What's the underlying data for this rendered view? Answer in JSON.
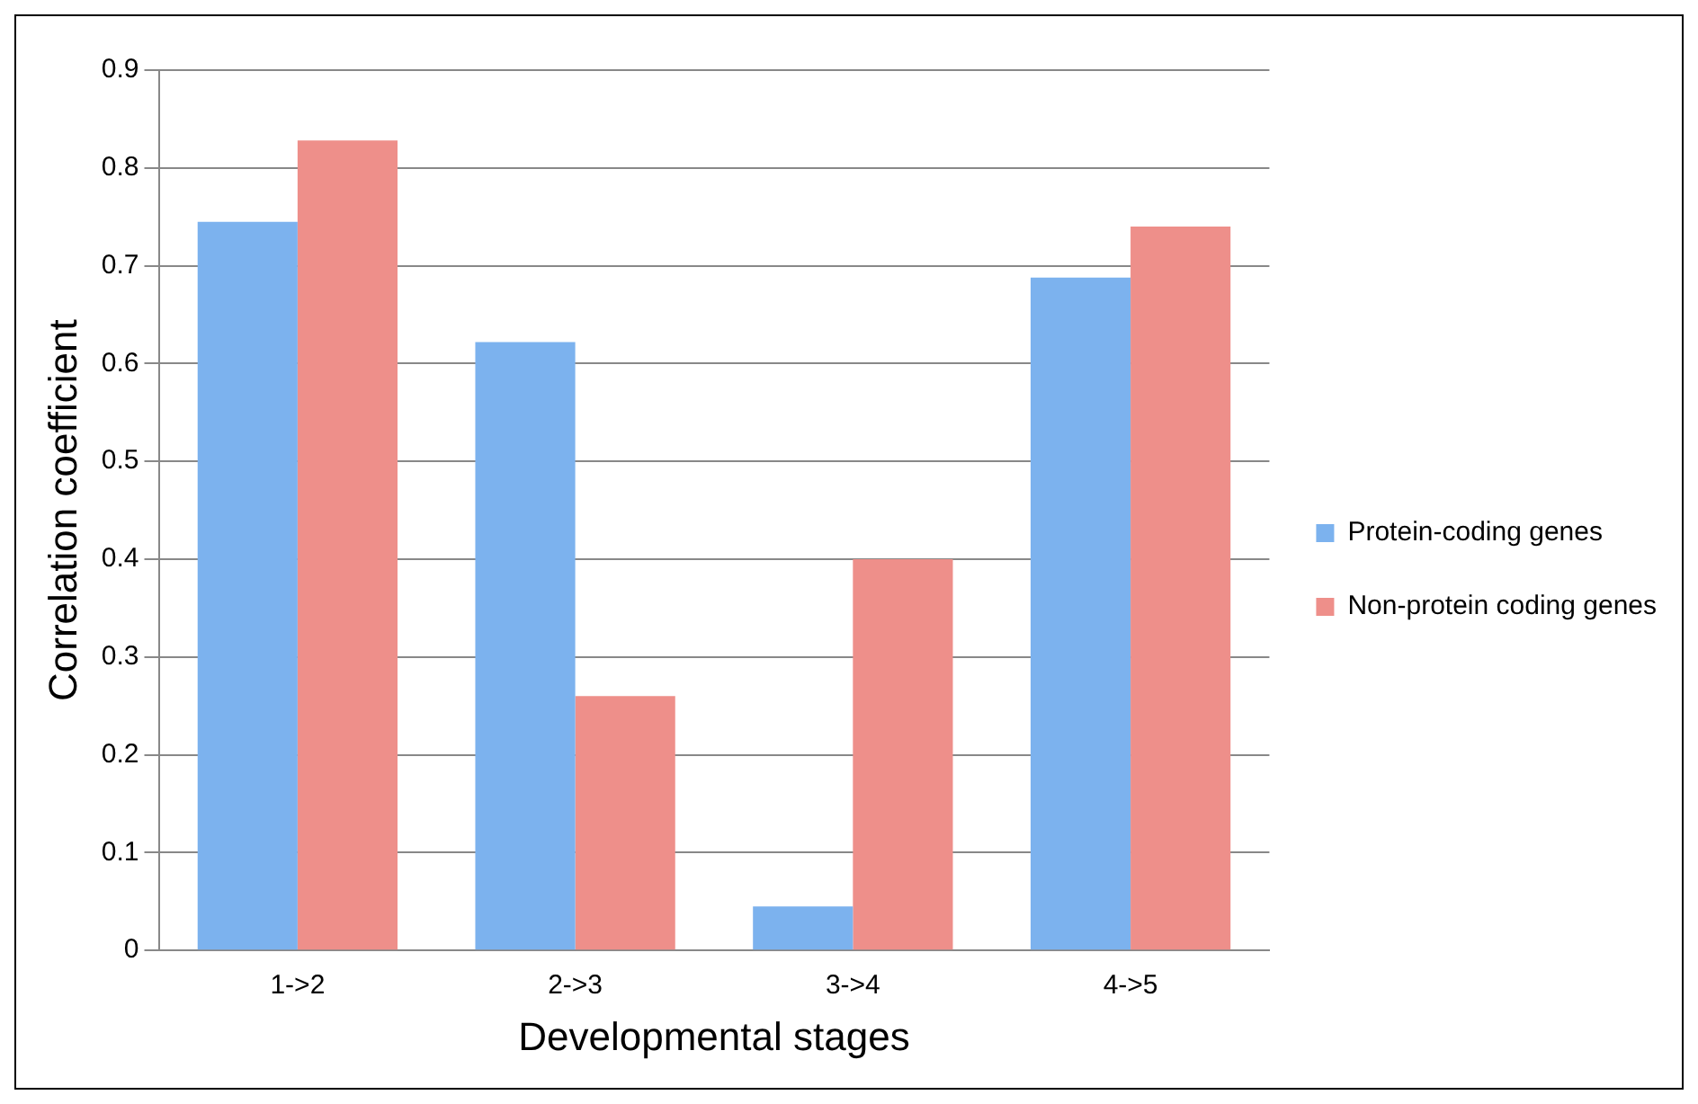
{
  "chart_data": {
    "type": "bar",
    "xlabel": "Developmental stages",
    "ylabel": "Correlation coefficient",
    "categories": [
      "1->2",
      "2->3",
      "3->4",
      "4->5"
    ],
    "series": [
      {
        "name": "Protein-coding genes",
        "color": "#7cb2ee",
        "values": [
          0.745,
          0.622,
          0.045,
          0.688
        ]
      },
      {
        "name": "Non-protein coding genes",
        "color": "#ee8f8a",
        "values": [
          0.828,
          0.26,
          0.4,
          0.74
        ]
      }
    ],
    "ylim": [
      0,
      0.9
    ],
    "yticks": [
      0,
      0.1,
      0.2,
      0.3,
      0.4,
      0.5,
      0.6,
      0.7,
      0.8,
      0.9
    ],
    "grid": "y",
    "legend": "right"
  }
}
